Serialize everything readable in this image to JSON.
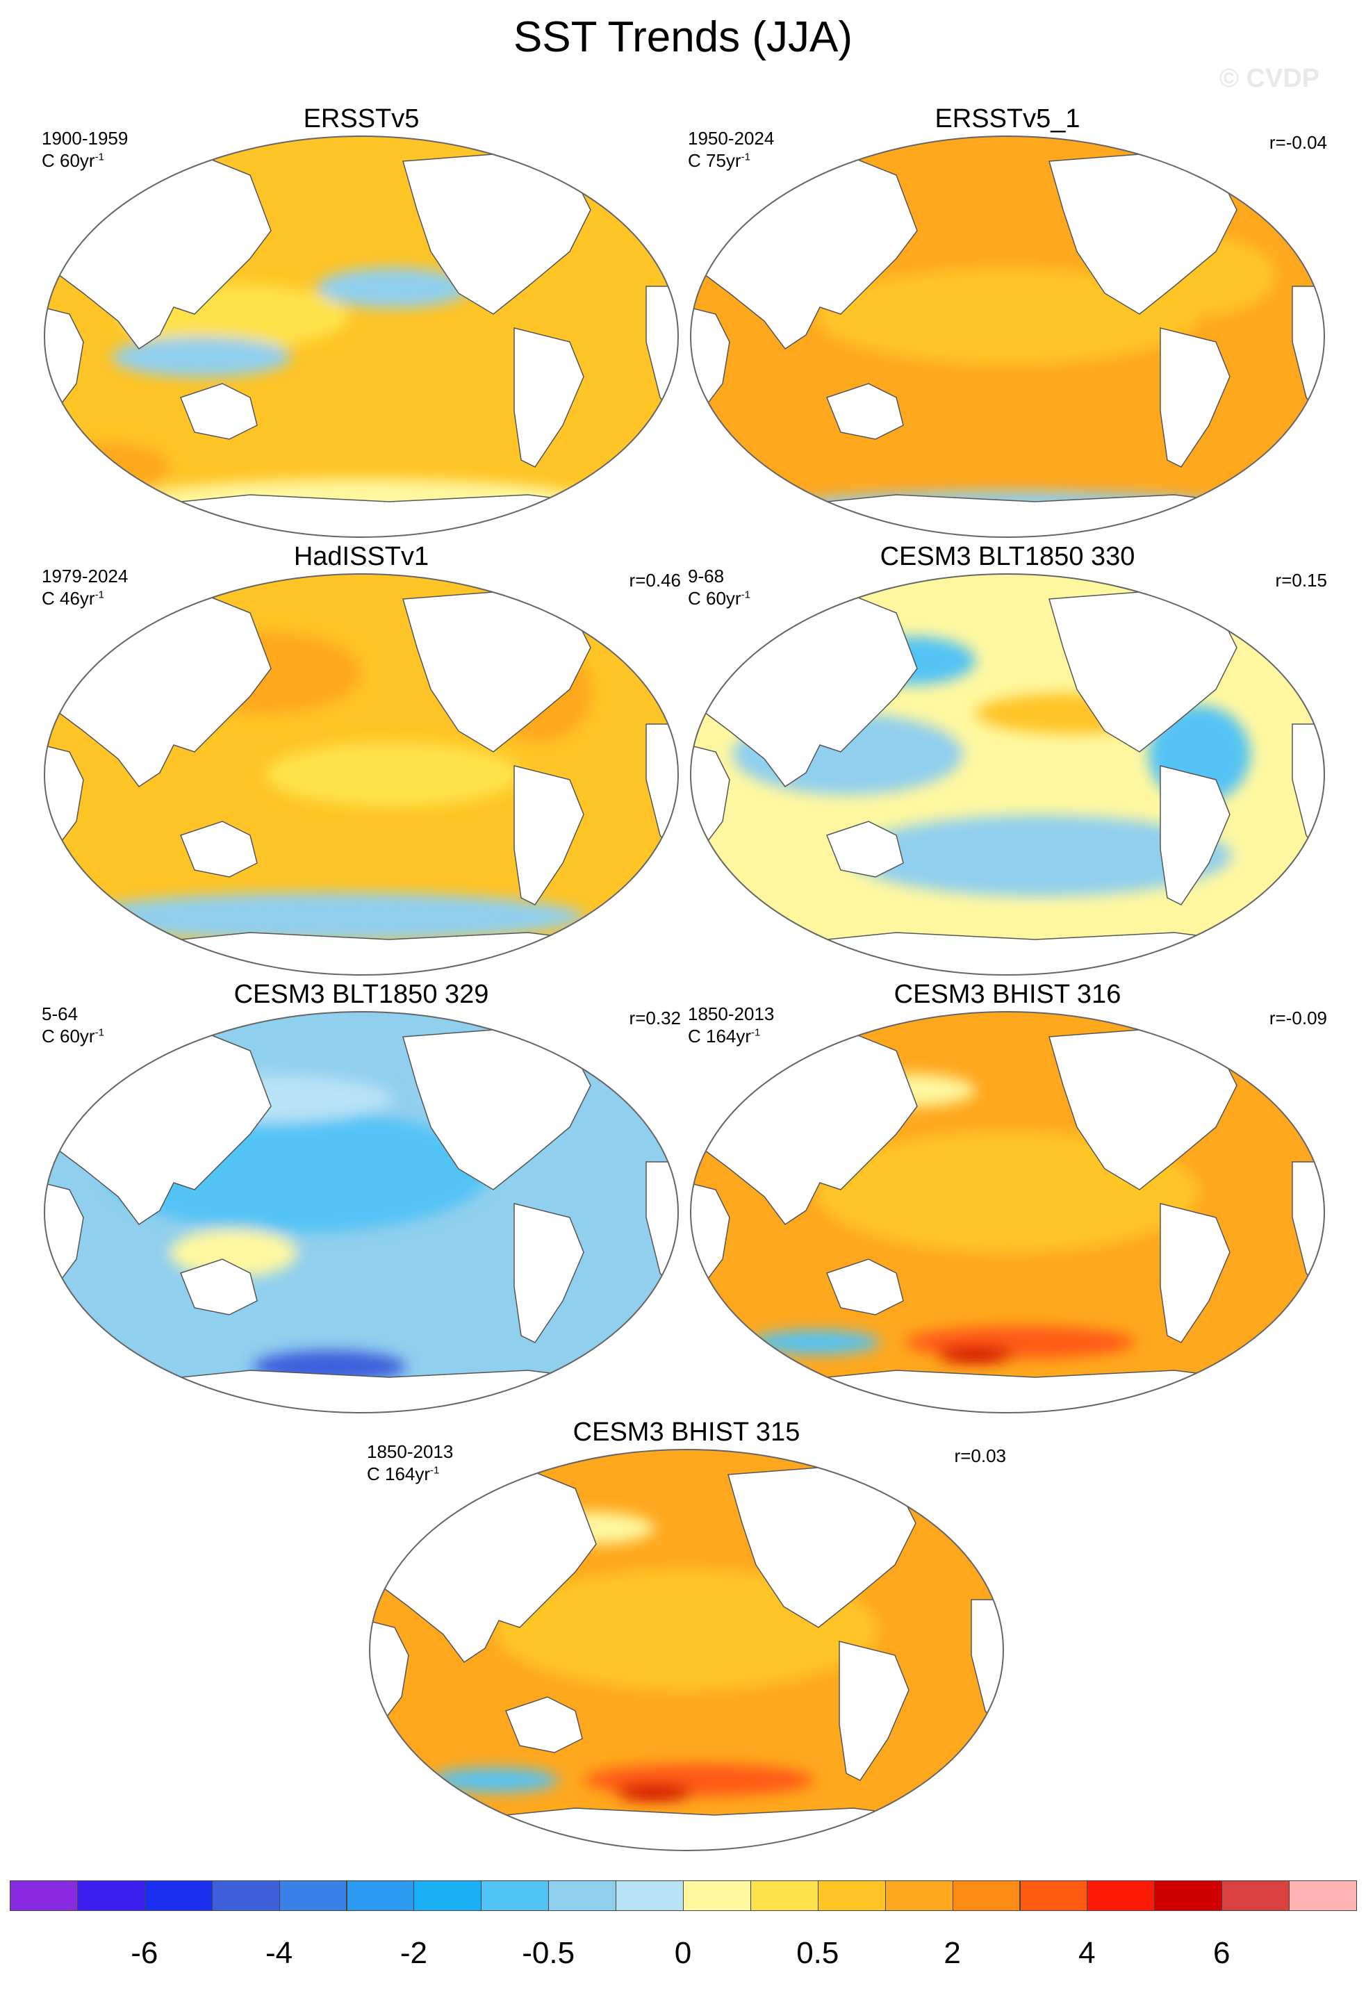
{
  "figure": {
    "title": "SST Trends (JJA)",
    "watermark": "© CVDP"
  },
  "panels": [
    {
      "title": "ERSSTv5",
      "period": "1900-1959",
      "units_base": "C 60yr",
      "units_exp": "-1",
      "corr": "",
      "pattern": "warm_mixed"
    },
    {
      "title": "ERSSTv5_1",
      "period": "1950-2024",
      "units_base": "C 75yr",
      "units_exp": "-1",
      "corr": "r=-0.04",
      "pattern": "warm"
    },
    {
      "title": "HadISSTv1",
      "period": "1979-2024",
      "units_base": "C 46yr",
      "units_exp": "-1",
      "corr": "r=0.46",
      "pattern": "warm_cool_south"
    },
    {
      "title": "CESM3 BLT1850 330",
      "period": "9-68",
      "units_base": "C 60yr",
      "units_exp": "-1",
      "corr": "r=0.15",
      "pattern": "mixed"
    },
    {
      "title": "CESM3 BLT1850 329",
      "period": "5-64",
      "units_base": "C 60yr",
      "units_exp": "-1",
      "corr": "r=0.32",
      "pattern": "cool"
    },
    {
      "title": "CESM3 BHIST 316",
      "period": "1850-2013",
      "units_base": "C 164yr",
      "units_exp": "-1",
      "corr": "r=-0.09",
      "pattern": "warm_hot_south"
    },
    {
      "title": "CESM3 BHIST 315",
      "period": "1850-2013",
      "units_base": "C 164yr",
      "units_exp": "-1",
      "corr": "r=0.03",
      "pattern": "warm_hot_south"
    }
  ],
  "colorbar": {
    "colors": [
      "#8a2be2",
      "#3b1ef0",
      "#1a2ff0",
      "#3d5fdc",
      "#3b82e8",
      "#2b9af0",
      "#19b0f5",
      "#52c3f5",
      "#90cfee",
      "#b8e2f5",
      "#fff7a0",
      "#ffe24a",
      "#ffc425",
      "#ffa81e",
      "#ff8a14",
      "#ff5a12",
      "#ff1a08",
      "#d00000",
      "#d94040",
      "#ffb3b3"
    ],
    "tick_labels": [
      "-6",
      "-4",
      "-2",
      "-0.5",
      "0",
      "0.5",
      "2",
      "4",
      "6"
    ],
    "tick_boundaries": [
      2,
      4,
      6,
      8,
      10,
      12,
      14,
      16,
      18
    ]
  }
}
